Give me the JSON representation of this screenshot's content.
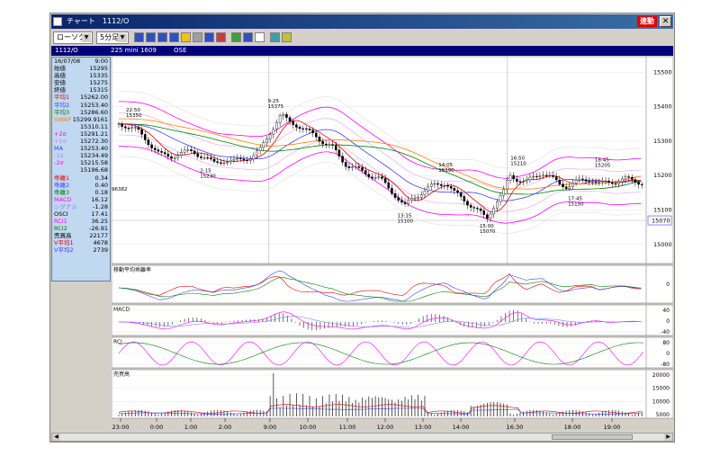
{
  "window": {
    "title": "チャート　1112/O",
    "rendo_label": "連動",
    "close_label": "✕"
  },
  "toolbar": {
    "chart_type": "ローソク",
    "interval": "5分足",
    "tool_icons": [
      "chart-line-icon",
      "chart-bar-icon",
      "volume-icon",
      "window-icon",
      "zoom-icon",
      "grid-icon",
      "compare-icon",
      "options-icon",
      "pen-icon",
      "cursor-icon",
      "eraser-icon",
      "refresh-icon",
      "settings-icon"
    ]
  },
  "infobar": {
    "symbol": "1112/O",
    "contract": "225 mini 1609",
    "exchange": "OSE"
  },
  "side_panel": [
    {
      "label": "16/07/08",
      "value": "9:00",
      "color": "#000000"
    },
    {
      "label": "始値",
      "value": "15295",
      "color": "#000000"
    },
    {
      "label": "高値",
      "value": "15335",
      "color": "#000000"
    },
    {
      "label": "安値",
      "value": "15275",
      "color": "#000000"
    },
    {
      "label": "終値",
      "value": "15315",
      "color": "#000000"
    },
    {
      "label": "平均1",
      "value": "15262.00",
      "color": "#e00000"
    },
    {
      "label": "平均2",
      "value": "15253.40",
      "color": "#4040ff"
    },
    {
      "label": "平均3",
      "value": "15286.60",
      "color": "#008000"
    },
    {
      "label": "VWAP",
      "value": "15299.9161",
      "color": "#ff8000"
    },
    {
      "label": "",
      "value": "15310.11",
      "color": "#000000"
    },
    {
      "label": "+2σ",
      "value": "15291.21",
      "color": "#ff00ff"
    },
    {
      "label": "+1σ",
      "value": "15272.30",
      "color": "#c080ff"
    },
    {
      "label": "MA",
      "value": "15253.40",
      "color": "#4040ff"
    },
    {
      "label": "-1σ",
      "value": "15234.49",
      "color": "#c080ff"
    },
    {
      "label": "-2σ",
      "value": "15215.58",
      "color": "#ff00ff"
    },
    {
      "label": "",
      "value": "15196.68",
      "color": "#000000"
    },
    {
      "label": "乖離1",
      "value": "0.34",
      "color": "#e00000"
    },
    {
      "label": "乖離2",
      "value": "0.40",
      "color": "#4040ff"
    },
    {
      "label": "乖離3",
      "value": "0.18",
      "color": "#008000"
    },
    {
      "label": "MACD",
      "value": "16.12",
      "color": "#ff00ff"
    },
    {
      "label": "シグナル",
      "value": "-1.28",
      "color": "#8080ff"
    },
    {
      "label": "OSCI",
      "value": "17.41",
      "color": "#000000"
    },
    {
      "label": "RCI1",
      "value": "36.25",
      "color": "#ff00ff"
    },
    {
      "label": "RCI2",
      "value": "-26.91",
      "color": "#008000"
    },
    {
      "label": "売買高",
      "value": "22177",
      "color": "#000000"
    },
    {
      "label": "V平均1",
      "value": "4678",
      "color": "#e00000"
    },
    {
      "label": "V平均2",
      "value": "2739",
      "color": "#4040ff"
    }
  ],
  "chart_data": {
    "type": "candlestick",
    "x_ticks": [
      "23:00",
      "0:00",
      "1:00",
      "2:00",
      "9:00",
      "10:00",
      "11:00",
      "12:00",
      "13:00",
      "14:00",
      "16:30",
      "18:00",
      "19:00"
    ],
    "price_axis": {
      "ticks": [
        15500,
        15400,
        15300,
        15200,
        15100,
        15000
      ],
      "ylim": [
        14950,
        15540
      ],
      "current": "15070"
    },
    "close_path": [
      [
        0,
        15350
      ],
      [
        8,
        15345
      ],
      [
        18,
        15330
      ],
      [
        28,
        15300
      ],
      [
        40,
        15260
      ],
      [
        50,
        15255
      ],
      [
        60,
        15265
      ],
      [
        72,
        15270
      ],
      [
        82,
        15255
      ],
      [
        92,
        15235
      ],
      [
        102,
        15245
      ],
      [
        112,
        15240
      ],
      [
        122,
        15250
      ],
      [
        130,
        15255
      ],
      [
        138,
        15275
      ],
      [
        146,
        15320
      ],
      [
        152,
        15350
      ],
      [
        158,
        15375
      ],
      [
        164,
        15360
      ],
      [
        172,
        15350
      ],
      [
        182,
        15330
      ],
      [
        192,
        15315
      ],
      [
        200,
        15295
      ],
      [
        208,
        15280
      ],
      [
        216,
        15250
      ],
      [
        222,
        15230
      ],
      [
        230,
        15220
      ],
      [
        238,
        15210
      ],
      [
        246,
        15200
      ],
      [
        254,
        15190
      ],
      [
        262,
        15165
      ],
      [
        270,
        15140
      ],
      [
        278,
        15110
      ],
      [
        286,
        15135
      ],
      [
        294,
        15150
      ],
      [
        302,
        15165
      ],
      [
        310,
        15175
      ],
      [
        318,
        15180
      ],
      [
        326,
        15150
      ],
      [
        334,
        15135
      ],
      [
        342,
        15115
      ],
      [
        350,
        15095
      ],
      [
        358,
        15075
      ],
      [
        366,
        15120
      ],
      [
        374,
        15150
      ],
      [
        380,
        15200
      ],
      [
        388,
        15190
      ],
      [
        396,
        15180
      ],
      [
        404,
        15195
      ],
      [
        412,
        15210
      ],
      [
        420,
        15195
      ],
      [
        428,
        15175
      ],
      [
        436,
        15170
      ],
      [
        444,
        15180
      ],
      [
        452,
        15185
      ],
      [
        460,
        15190
      ],
      [
        468,
        15175
      ],
      [
        476,
        15180
      ],
      [
        484,
        15185
      ],
      [
        492,
        15190
      ],
      [
        500,
        15185
      ],
      [
        510,
        15180
      ]
    ],
    "annotations": [
      {
        "x": 14,
        "price": 15350,
        "time": "22:50",
        "value": "15350",
        "anchor": "above"
      },
      {
        "x": 86,
        "price": 15230,
        "time": "2:15",
        "value": "15230",
        "anchor": "below"
      },
      {
        "x": 152,
        "price": 15375,
        "time": "9:25",
        "value": "15375",
        "anchor": "above"
      },
      {
        "x": 278,
        "price": 15100,
        "time": "13:15",
        "value": "15100",
        "anchor": "below"
      },
      {
        "x": 318,
        "price": 15190,
        "time": "14:05",
        "value": "15190",
        "anchor": "above"
      },
      {
        "x": 358,
        "price": 15070,
        "time": "15:00",
        "value": "15070",
        "anchor": "below"
      },
      {
        "x": 388,
        "price": 15210,
        "time": "16:50",
        "value": "15210",
        "anchor": "above"
      },
      {
        "x": 444,
        "price": 15150,
        "time": "17:45",
        "value": "15150",
        "anchor": "below"
      },
      {
        "x": 470,
        "price": 15205,
        "time": "18:45",
        "value": "15205",
        "anchor": "above"
      }
    ],
    "level_marker": "96382",
    "panels": [
      {
        "name": "移動平均乖離率",
        "ticks": [
          "0"
        ]
      },
      {
        "name": "MACD",
        "ticks": [
          "40",
          "0",
          "-40"
        ]
      },
      {
        "name": "RCI",
        "ticks": [
          "80",
          "0",
          "-80"
        ]
      },
      {
        "name": "売買高",
        "ticks": [
          "20000",
          "15000",
          "10000",
          "5000"
        ]
      }
    ]
  }
}
